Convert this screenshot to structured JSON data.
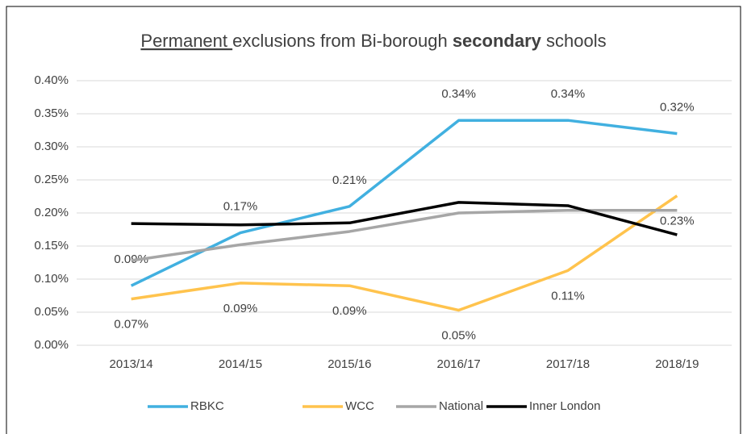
{
  "chart_data": {
    "type": "line",
    "title": [
      "Permanent ",
      "exclusions from Bi-borough ",
      "secondary",
      " schools"
    ],
    "title_styles": [
      "underline",
      "normal",
      "bold",
      "normal"
    ],
    "categories": [
      "2013/14",
      "2014/15",
      "2015/16",
      "2016/17",
      "2017/18",
      "2018/19"
    ],
    "series": [
      {
        "name": "RBKC",
        "color": "#41b0e0",
        "values": [
          0.09,
          0.17,
          0.21,
          0.34,
          0.34,
          0.32
        ],
        "value_labels": [
          "0.09%",
          "0.17%",
          "0.21%",
          "0.34%",
          "0.34%",
          "0.32%"
        ],
        "label_position": "above"
      },
      {
        "name": "WCC",
        "color": "#ffc34d",
        "values": [
          0.07,
          0.094,
          0.09,
          0.053,
          0.113,
          0.226
        ],
        "value_labels": [
          "0.07%",
          "0.09%",
          "0.09%",
          "0.05%",
          "0.11%",
          "0.23%"
        ],
        "label_position": "below"
      },
      {
        "name": "National",
        "color": "#a6a6a6",
        "values": [
          0.128,
          0.152,
          0.172,
          0.2,
          0.204,
          0.204
        ]
      },
      {
        "name": "Inner London",
        "color": "#000000",
        "values": [
          0.184,
          0.182,
          0.185,
          0.216,
          0.211,
          0.167
        ]
      }
    ],
    "ylim": [
      0,
      0.4
    ],
    "yticks": [
      {
        "value": 0,
        "label": "0.00%"
      },
      {
        "value": 0.05,
        "label": "0.05%"
      },
      {
        "value": 0.1,
        "label": "0.10%"
      },
      {
        "value": 0.15,
        "label": "0.15%"
      },
      {
        "value": 0.2,
        "label": "0.20%"
      },
      {
        "value": 0.25,
        "label": "0.25%"
      },
      {
        "value": 0.3,
        "label": "0.30%"
      },
      {
        "value": 0.35,
        "label": "0.35%"
      },
      {
        "value": 0.4,
        "label": "0.40%"
      }
    ],
    "grid": true,
    "legend": "bottom"
  }
}
